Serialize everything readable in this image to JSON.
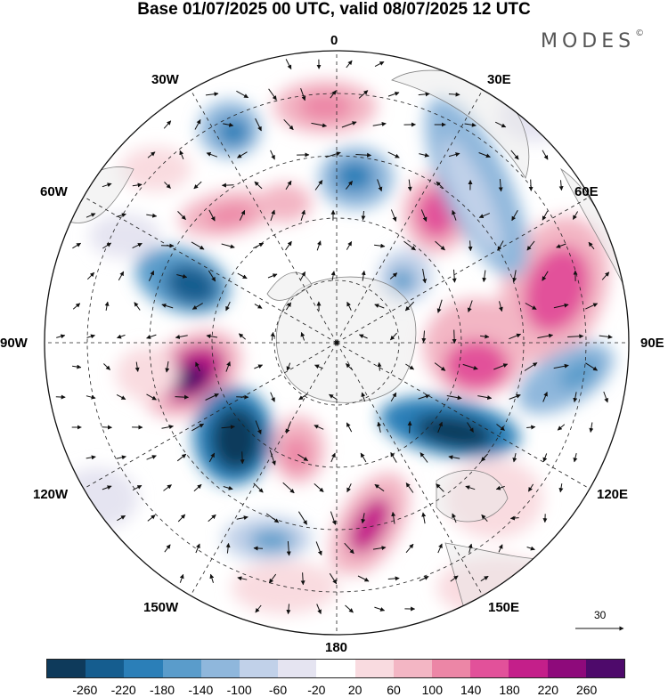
{
  "title": "Base 01/07/2025 00 UTC, valid 08/07/2025 12 UTC",
  "brand": {
    "name": "MODES",
    "mark": "©"
  },
  "map": {
    "projection": "south polar stereographic",
    "lon_labels": {
      "n": "0",
      "ne": "30E",
      "e1": "60E",
      "e2": "90E",
      "e3": "120E",
      "e4": "150E",
      "s": "180",
      "w4": "150W",
      "w3": "120W",
      "w2": "90W",
      "w1": "60W",
      "nw": "30W"
    },
    "reference_vector": "30",
    "colors": {
      "land": "#e9e9e9",
      "coast": "#777777",
      "grid": "#222222",
      "arrow": "#111111"
    }
  },
  "colorbar": {
    "ticks": [
      "-260",
      "-220",
      "-180",
      "-140",
      "-100",
      "-60",
      "-20",
      "20",
      "60",
      "100",
      "140",
      "180",
      "220",
      "260"
    ],
    "colors": [
      "#0e3a5b",
      "#155d8f",
      "#2b7fb8",
      "#5a9ccb",
      "#8fb7dc",
      "#c1d1e9",
      "#e5e4f1",
      "#ffffff",
      "#f9dbe0",
      "#f3b6c4",
      "#ec86a6",
      "#e2519a",
      "#c41f8a",
      "#8e0a7b",
      "#4e0a6b"
    ]
  }
}
